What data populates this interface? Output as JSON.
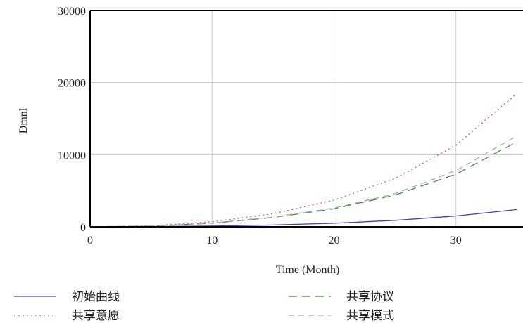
{
  "chart_data": {
    "type": "line",
    "xlabel": "Time (Month)",
    "ylabel": "Dmnl",
    "xlim": [
      0,
      35.5
    ],
    "ylim": [
      0,
      30000
    ],
    "x_ticks": [
      "0",
      "10",
      "20",
      "30"
    ],
    "y_ticks": [
      "0",
      "10000",
      "20000",
      "30000"
    ],
    "grid": true,
    "legend_position": "bottom",
    "x": [
      0,
      5,
      10,
      15,
      20,
      25,
      30,
      35
    ],
    "series": [
      {
        "name": "初始曲线",
        "color": "#3b3bd6",
        "dash": "solid",
        "values": [
          0,
          30,
          110,
          250,
          500,
          900,
          1500,
          2400
        ]
      },
      {
        "name": "共享意愿",
        "color": "#d9595e",
        "dash": "dotted",
        "values": [
          0,
          150,
          700,
          1800,
          3700,
          6700,
          11300,
          18500
        ]
      },
      {
        "name": "共享协议",
        "color": "#3f8f3f",
        "dash": "long-dash",
        "values": [
          0,
          100,
          500,
          1300,
          2500,
          4400,
          7300,
          11800
        ]
      },
      {
        "name": "共享模式",
        "color": "#a8a8a8",
        "dash": "dash",
        "values": [
          0,
          110,
          520,
          1350,
          2600,
          4600,
          7800,
          12600
        ]
      }
    ]
  }
}
